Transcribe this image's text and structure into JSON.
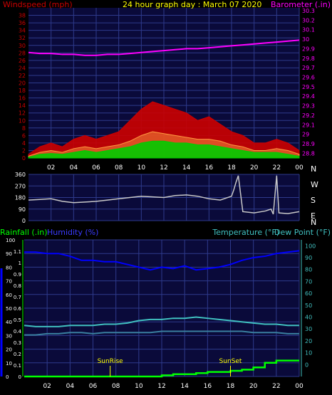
{
  "title": "24 hour graph day : March 07 2020",
  "colors": {
    "background": "#000000",
    "plot_bg": "#0a0a3a",
    "grid": "#2e3a8c",
    "windspeed": "#cc0000",
    "windspeed_avg": "#ff9a40",
    "windspeed_low": "#00cc00",
    "barometer": "#ff00ff",
    "direction": "#c8c8c8",
    "rainfall": "#00ff00",
    "humidity": "#0000ff",
    "temperature": "#40c0c0",
    "dewpoint": "#3a80a0",
    "sun": "#ffff00",
    "axis_text": "#ffffff",
    "title_text": "#ffff00"
  },
  "x_ticks": [
    "02",
    "04",
    "06",
    "08",
    "10",
    "12",
    "14",
    "16",
    "18",
    "20",
    "22",
    "00"
  ],
  "chart_data": [
    {
      "type": "line",
      "name": "wind-barometer",
      "title": "24 hour graph day : March 07 2020",
      "left_label": "Windspeed (mph)",
      "right_label": "Barometer (.in)",
      "left_ticks": [
        "0",
        "2",
        "4",
        "6",
        "8",
        "10",
        "12",
        "14",
        "16",
        "18",
        "20",
        "22",
        "24",
        "26",
        "28",
        "30",
        "32",
        "34",
        "36",
        "38"
      ],
      "right_ticks": [
        "28.8",
        "28.9",
        "29",
        "29.1",
        "29.2",
        "29.3",
        "29.4",
        "29.5",
        "29.6",
        "29.7",
        "29.8",
        "29.9",
        "30",
        "30.1",
        "30.2",
        "30.3"
      ],
      "ylim_left": [
        0,
        40
      ],
      "ylim_right": [
        28.75,
        30.33
      ],
      "x_hours": [
        0,
        1,
        2,
        3,
        4,
        5,
        6,
        7,
        8,
        9,
        10,
        11,
        12,
        13,
        14,
        15,
        16,
        17,
        18,
        19,
        20,
        21,
        22,
        23,
        24
      ],
      "series": [
        {
          "name": "Windspeed",
          "axis": "left",
          "values": [
            1,
            3,
            4,
            3,
            5,
            6,
            5,
            6,
            7,
            10,
            13,
            15,
            14,
            13,
            12,
            10,
            11,
            9,
            7,
            6,
            4,
            4,
            5,
            4,
            2
          ]
        },
        {
          "name": "Windspeed Avg",
          "axis": "left",
          "values": [
            0.5,
            1.5,
            2,
            1.5,
            2.5,
            3,
            2.5,
            3,
            3.5,
            4.5,
            6,
            7,
            6.5,
            6,
            5.5,
            5,
            5,
            4.5,
            3.5,
            3,
            2,
            2,
            2.5,
            2,
            1
          ]
        },
        {
          "name": "Windspeed Low",
          "axis": "left",
          "values": [
            0.2,
            1,
            1.2,
            1,
            1.5,
            2,
            1.5,
            2,
            2.5,
            3,
            4,
            4.5,
            4.5,
            4,
            4,
            3.5,
            3.5,
            3,
            2.5,
            2,
            1.5,
            1.5,
            1.5,
            1,
            0.5
          ]
        },
        {
          "name": "Barometer",
          "axis": "right",
          "values": [
            29.86,
            29.85,
            29.85,
            29.84,
            29.84,
            29.83,
            29.83,
            29.84,
            29.84,
            29.85,
            29.86,
            29.87,
            29.88,
            29.89,
            29.9,
            29.9,
            29.91,
            29.92,
            29.93,
            29.94,
            29.95,
            29.96,
            29.97,
            29.98,
            29.99
          ]
        }
      ]
    },
    {
      "type": "line",
      "name": "wind-direction",
      "left_ticks": [
        "0",
        "90",
        "180",
        "270",
        "360"
      ],
      "ylim": [
        0,
        360
      ],
      "right_labels": [
        "N",
        "W",
        "S",
        "E",
        "N"
      ],
      "x_hours": [
        0,
        1,
        2,
        3,
        4,
        5,
        6,
        7,
        8,
        9,
        10,
        11,
        12,
        13,
        14,
        15,
        16,
        17,
        18,
        18.2,
        18.4,
        18.6,
        19,
        20,
        21,
        21.5,
        21.7,
        22,
        22.2,
        23,
        24
      ],
      "series": [
        {
          "name": "Wind Direction",
          "values": [
            160,
            165,
            170,
            150,
            140,
            145,
            150,
            160,
            170,
            180,
            190,
            185,
            180,
            195,
            200,
            190,
            170,
            160,
            190,
            240,
            300,
            350,
            70,
            60,
            75,
            90,
            50,
            350,
            60,
            55,
            70
          ]
        }
      ]
    },
    {
      "type": "line",
      "name": "rain-humidity-temp",
      "left_label_rain": "Rainfall (.in)",
      "left_label_hum": "Humidity (%)",
      "right_label_temp": "Temperature (°F)",
      "right_label_dew": "Dew Point (°F)",
      "rain_ticks": [
        "0",
        "0.1",
        "0.2",
        "0.3",
        "0.4",
        "0.5",
        "0.6",
        "0.7",
        "0.8",
        "0.9",
        "1",
        "1.1"
      ],
      "hum_ticks": [
        "0",
        "10",
        "20",
        "30",
        "40",
        "50",
        "60",
        "70",
        "80",
        "90",
        "100"
      ],
      "temp_ticks": [
        "0",
        "10",
        "20",
        "30",
        "40",
        "50",
        "60",
        "70",
        "80",
        "90",
        "100"
      ],
      "ylim_rain": [
        0,
        1.2
      ],
      "ylim_hum": [
        0,
        100
      ],
      "ylim_temp": [
        -10,
        105
      ],
      "annotations": [
        {
          "label": "SunRise",
          "hour": 7.5
        },
        {
          "label": "SunSet",
          "hour": 18
        }
      ],
      "x_hours": [
        0,
        1,
        2,
        3,
        4,
        5,
        6,
        7,
        8,
        9,
        10,
        11,
        12,
        13,
        14,
        15,
        16,
        17,
        18,
        19,
        20,
        21,
        22,
        23,
        24
      ],
      "series": [
        {
          "name": "Rainfall",
          "axis": "rain",
          "values": [
            0,
            0,
            0,
            0,
            0,
            0,
            0,
            0,
            0,
            0,
            0,
            0,
            0.01,
            0.02,
            0.02,
            0.03,
            0.04,
            0.04,
            0.05,
            0.06,
            0.08,
            0.12,
            0.14,
            0.14,
            0.14
          ]
        },
        {
          "name": "Humidity",
          "axis": "hum",
          "values": [
            91,
            91,
            90,
            90,
            88,
            85,
            85,
            84,
            84,
            82,
            80,
            78,
            80,
            79,
            81,
            78,
            79,
            80,
            82,
            85,
            87,
            88,
            90,
            91,
            92
          ]
        },
        {
          "name": "Temperature",
          "axis": "temp",
          "values": [
            33,
            32,
            32,
            32,
            33,
            33,
            33,
            34,
            34,
            35,
            37,
            38,
            38,
            39,
            39,
            40,
            39,
            38,
            37,
            36,
            35,
            34,
            34,
            33,
            33
          ]
        },
        {
          "name": "Dew Point",
          "axis": "temp",
          "values": [
            25,
            25,
            26,
            26,
            27,
            27,
            26,
            27,
            27,
            27,
            27,
            27,
            28,
            28,
            28,
            28,
            28,
            28,
            28,
            28,
            27,
            27,
            27,
            26,
            26
          ]
        }
      ]
    }
  ]
}
